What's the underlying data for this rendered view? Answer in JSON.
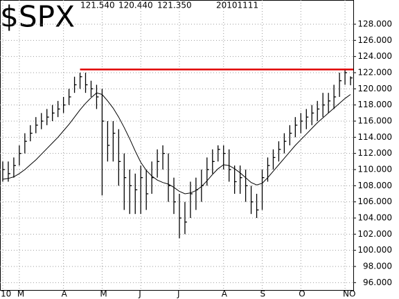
{
  "chart_data": {
    "type": "ohlc",
    "title": "$SPX",
    "header": {
      "high": "121.540",
      "low": "120.440",
      "close": "121.350",
      "date": "20101111"
    },
    "categories": [
      "10",
      null,
      null,
      "M",
      null,
      null,
      null,
      null,
      null,
      null,
      null,
      "A",
      null,
      null,
      null,
      null,
      null,
      null,
      "M",
      null,
      null,
      null,
      null,
      null,
      null,
      "J",
      null,
      null,
      null,
      null,
      null,
      null,
      "J",
      null,
      null,
      null,
      null,
      null,
      null,
      null,
      "A",
      null,
      null,
      null,
      null,
      null,
      null,
      "S",
      null,
      null,
      null,
      null,
      null,
      null,
      "O",
      null,
      null,
      null,
      null,
      null,
      null,
      null,
      "NO",
      null
    ],
    "high": [
      111,
      111,
      111.5,
      113,
      114.5,
      115.5,
      116.5,
      117,
      117.5,
      118,
      118.5,
      119,
      120,
      121.5,
      122,
      122,
      121,
      120.5,
      120,
      116,
      116,
      115,
      112,
      110,
      109.5,
      110.5,
      110,
      111,
      112.5,
      113,
      112,
      109,
      107,
      106,
      108.5,
      109,
      110,
      111.5,
      112.5,
      113,
      113,
      112.5,
      110.5,
      110.5,
      110,
      108,
      107,
      110,
      111.5,
      112.5,
      113.5,
      114.5,
      115.5,
      116.5,
      117,
      117.5,
      118,
      118.5,
      119.5,
      119.5,
      120.5,
      122,
      122.5,
      121.54
    ],
    "low": [
      108.5,
      108.5,
      109,
      110.5,
      112,
      113.5,
      114.5,
      115,
      115.5,
      116,
      116.5,
      117,
      118,
      119.5,
      120,
      119.5,
      119,
      117.5,
      106.8,
      111,
      111,
      108,
      105,
      104.5,
      104.5,
      104.5,
      105,
      107,
      109,
      110,
      106,
      104.5,
      101.5,
      102,
      104,
      105,
      106,
      108,
      109.5,
      111,
      110,
      108.5,
      107,
      107,
      106,
      104.5,
      104,
      105,
      108.5,
      110,
      111,
      112,
      113,
      114,
      114.5,
      115,
      115.5,
      116,
      116.5,
      117,
      117.5,
      119,
      120.5,
      120.44
    ],
    "close": [
      110,
      109.5,
      110.5,
      112,
      113.5,
      114.5,
      115.5,
      116,
      116.5,
      117,
      117.5,
      118,
      119,
      120.5,
      121.5,
      120.5,
      120,
      119,
      116,
      113,
      114.5,
      111,
      109,
      108,
      107.5,
      109,
      107,
      109,
      111,
      112,
      108,
      106,
      104,
      103.5,
      107,
      107.5,
      108,
      110,
      111,
      112.5,
      112,
      110,
      108.5,
      109,
      108,
      106,
      105,
      109,
      110.5,
      111.5,
      112.5,
      113.5,
      114.5,
      115.5,
      116,
      116.5,
      117,
      117.5,
      118,
      118.5,
      119,
      121,
      122,
      121.35
    ],
    "moving_average": [
      108.8,
      108.9,
      109.1,
      109.5,
      110,
      110.6,
      111.2,
      111.9,
      112.6,
      113.3,
      114,
      114.8,
      115.6,
      116.5,
      117.4,
      118.2,
      118.9,
      119.5,
      119.3,
      118.5,
      117.6,
      116.5,
      115.2,
      113.8,
      112.3,
      110.9,
      109.9,
      109.2,
      108.7,
      108.4,
      108.2,
      107.8,
      107.3,
      107,
      107.1,
      107.4,
      107.9,
      108.6,
      109.4,
      110.1,
      110.6,
      110.5,
      110.1,
      109.6,
      109,
      108.4,
      108.1,
      108.3,
      109,
      109.8,
      110.6,
      111.4,
      112.2,
      113,
      113.7,
      114.4,
      115.1,
      115.8,
      116.4,
      117,
      117.6,
      118.2,
      118.8,
      119.3
    ],
    "bar_color": "#000000",
    "ma_color": "#000000",
    "resistance": {
      "value": 122.4,
      "start_category": 14,
      "color": "#e00000"
    },
    "ylim": [
      95,
      131
    ],
    "yticks": [
      {
        "value": 96,
        "label": "96.000"
      },
      {
        "value": 98,
        "label": "98.000"
      },
      {
        "value": 100,
        "label": "100.000"
      },
      {
        "value": 102,
        "label": "102.000"
      },
      {
        "value": 104,
        "label": "104.000"
      },
      {
        "value": 106,
        "label": "106.000"
      },
      {
        "value": 108,
        "label": "108.000"
      },
      {
        "value": 110,
        "label": "110.000"
      },
      {
        "value": 112,
        "label": "112.000"
      },
      {
        "value": 114,
        "label": "114.000"
      },
      {
        "value": 116,
        "label": "116.000"
      },
      {
        "value": 118,
        "label": "118.000"
      },
      {
        "value": 120,
        "label": "120.000"
      },
      {
        "value": 122,
        "label": "122.000"
      },
      {
        "value": 124,
        "label": "124.000"
      },
      {
        "value": 126,
        "label": "126.000"
      },
      {
        "value": 128,
        "label": "128.000"
      }
    ],
    "grid": true
  }
}
